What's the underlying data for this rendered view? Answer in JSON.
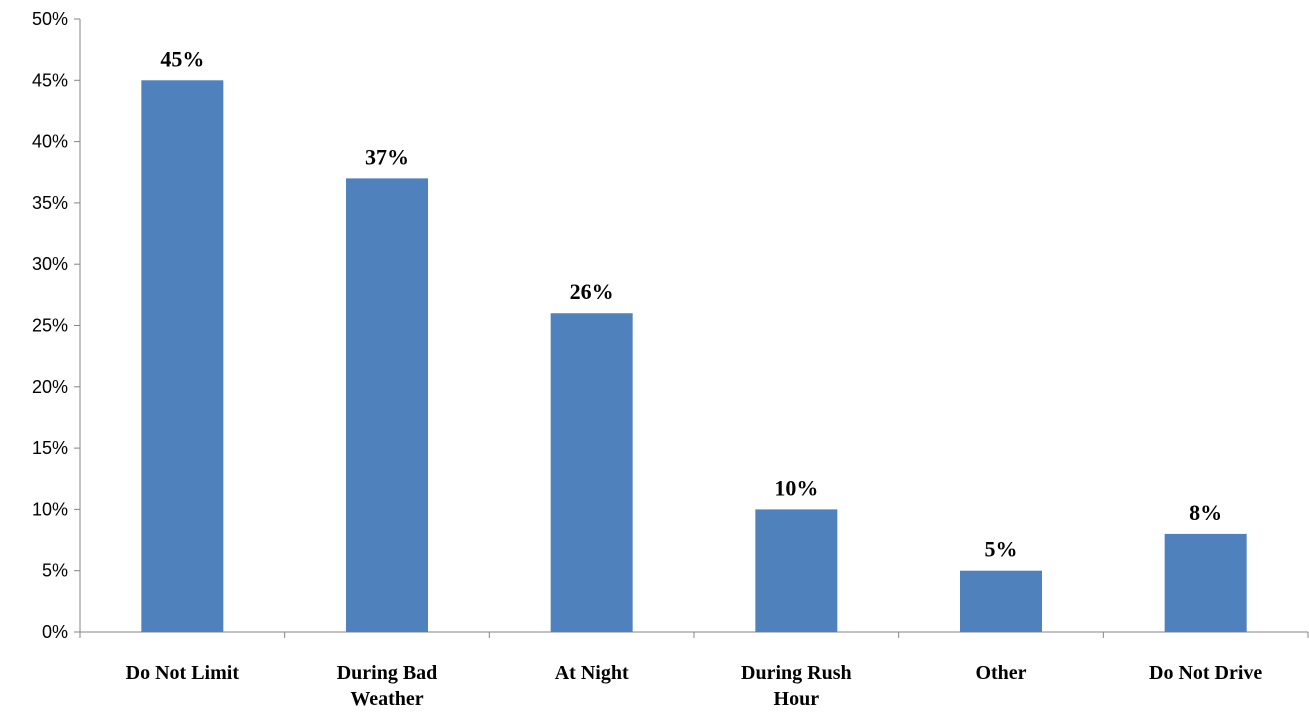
{
  "chart_data": {
    "type": "bar",
    "categories": [
      [
        "Do Not Limit"
      ],
      [
        "During Bad",
        "Weather"
      ],
      [
        "At Night"
      ],
      [
        "During Rush",
        "Hour"
      ],
      [
        "Other"
      ],
      [
        "Do Not Drive"
      ]
    ],
    "values": [
      45,
      37,
      26,
      10,
      5,
      8
    ],
    "data_labels": [
      "45%",
      "37%",
      "26%",
      "10%",
      "5%",
      "8%"
    ],
    "y_ticks": [
      "0%",
      "5%",
      "10%",
      "15%",
      "20%",
      "25%",
      "30%",
      "35%",
      "40%",
      "45%",
      "50%"
    ],
    "ylim": [
      0,
      50
    ],
    "y_step": 5,
    "grid": false,
    "legend": "none",
    "title": "",
    "xlabel": "",
    "ylabel": "",
    "bar_color": "#4F81BD",
    "axis_color": "#868686"
  }
}
